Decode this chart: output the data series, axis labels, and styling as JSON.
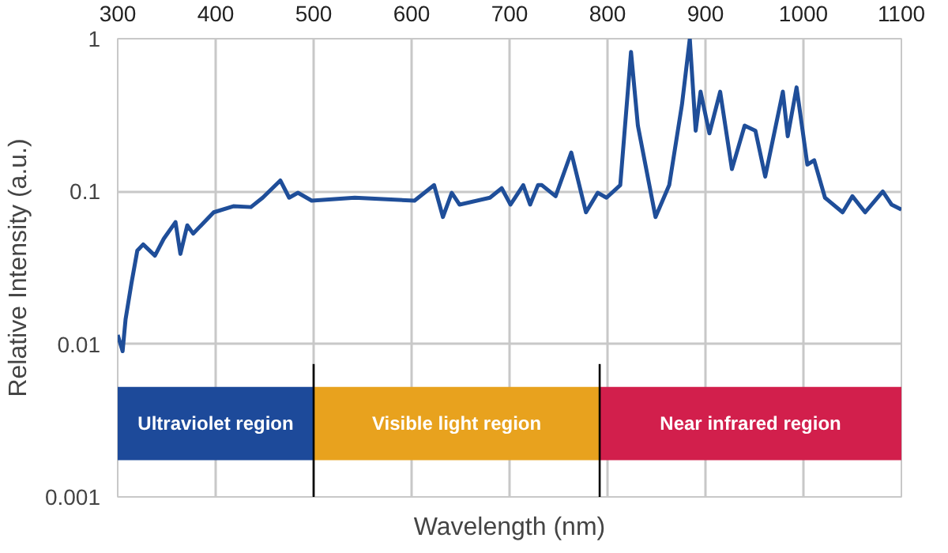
{
  "chart_data": {
    "type": "line",
    "xlabel": "Wavelength (nm)",
    "ylabel": "Relative Intensity (a.u.)",
    "xlim": [
      300,
      1100
    ],
    "xticks": [
      300,
      400,
      500,
      600,
      700,
      800,
      900,
      1000,
      1100
    ],
    "ylim": [
      0.001,
      1
    ],
    "yticks": [
      0.001,
      0.01,
      0.1,
      1
    ],
    "log": "y",
    "grid": true,
    "marker": "none",
    "line_style": "solid",
    "series": [
      {
        "color": "#1f4e99",
        "x": [
          300,
          305,
          308,
          314,
          320,
          326,
          338,
          347,
          359,
          364,
          371,
          377,
          398,
          418,
          436,
          448,
          466,
          475,
          484,
          498,
          542,
          603,
          623,
          632,
          641,
          649,
          680,
          692,
          701,
          714,
          721,
          729,
          733,
          747,
          763,
          778,
          790,
          799,
          813,
          824,
          831,
          849,
          863,
          876,
          884,
          890,
          895,
          904,
          915,
          927,
          940,
          951,
          961,
          979,
          984,
          993,
          1004,
          1011,
          1022,
          1040,
          1050,
          1063,
          1081,
          1090,
          1100
        ],
        "values": [
          0.0115,
          0.009,
          0.0145,
          0.025,
          0.041,
          0.045,
          0.038,
          0.049,
          0.063,
          0.039,
          0.06,
          0.053,
          0.073,
          0.08,
          0.079,
          0.091,
          0.118,
          0.091,
          0.098,
          0.087,
          0.091,
          0.087,
          0.11,
          0.068,
          0.098,
          0.082,
          0.091,
          0.105,
          0.082,
          0.11,
          0.082,
          0.11,
          0.11,
          0.093,
          0.18,
          0.073,
          0.098,
          0.091,
          0.11,
          0.82,
          0.27,
          0.068,
          0.11,
          0.37,
          1.0,
          0.25,
          0.45,
          0.24,
          0.45,
          0.14,
          0.27,
          0.25,
          0.125,
          0.45,
          0.23,
          0.48,
          0.15,
          0.16,
          0.091,
          0.073,
          0.093,
          0.073,
          0.1,
          0.082,
          0.076
        ]
      }
    ],
    "bands": [
      {
        "axis": "x",
        "from": 300,
        "to": 500,
        "label": "Ultraviolet region",
        "color": "#1d4a9a"
      },
      {
        "axis": "x",
        "from": 500,
        "to": 792,
        "label": "Visible light region",
        "color": "#e8a21e"
      },
      {
        "axis": "x",
        "from": 792,
        "to": 1100,
        "label": "Near infrared region",
        "color": "#d21f4c"
      }
    ],
    "ref_lines": [
      {
        "axis": "x",
        "value": 500,
        "color": "#000000"
      },
      {
        "axis": "x",
        "value": 792,
        "color": "#000000"
      }
    ]
  }
}
